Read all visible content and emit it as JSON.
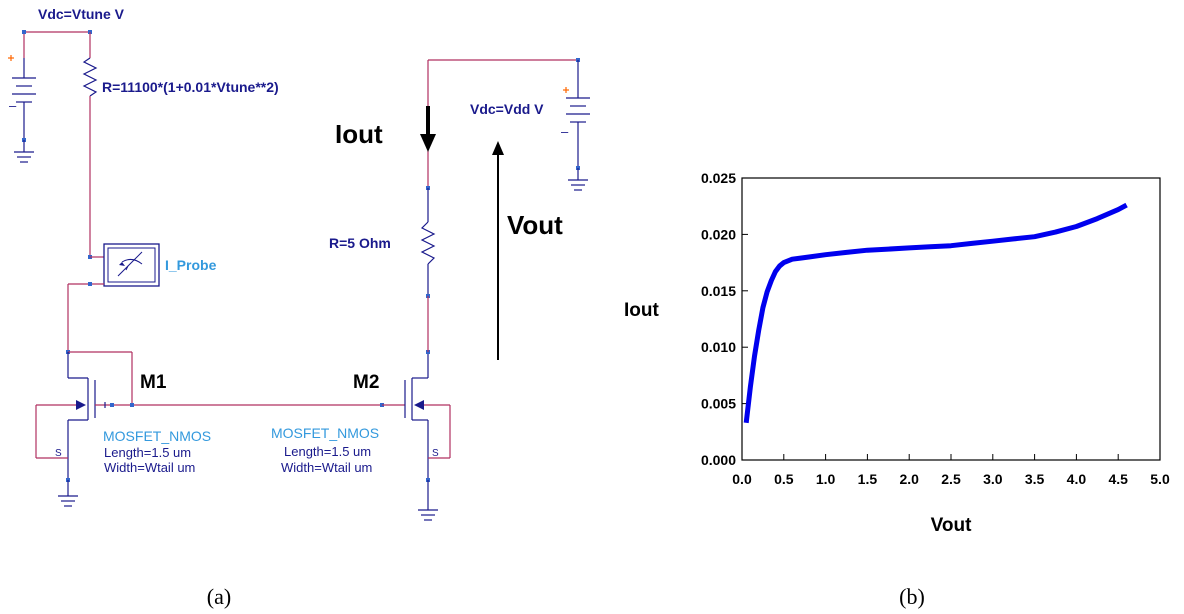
{
  "schematic": {
    "vsource_tune_label": "Vdc=Vtune V",
    "resistor_tune_label": "R=11100*(1+0.01*Vtune**2)",
    "probe_label": "I_Probe",
    "m1_label": "M1",
    "m2_label": "M2",
    "m1_model": "MOSFET_NMOS",
    "m1_length": "Length=1.5 um",
    "m1_width": "Width=Wtail um",
    "m2_model": "MOSFET_NMOS",
    "m2_length": "Length=1.5 um",
    "m2_width": "Width=Wtail um",
    "source_pin_m1": "S",
    "source_pin_m2": "S",
    "resistor_load_label": "R=5 Ohm",
    "vsource_dd_label": "Vdc=Vdd V",
    "iout_label": "Iout",
    "vout_label": "Vout",
    "plus_sign": "+",
    "minus_sign": "–"
  },
  "captions": {
    "a": "(a)",
    "b": "(b)"
  },
  "chart_data": {
    "type": "line",
    "title": "",
    "xlabel": "Vout",
    "ylabel": "Iout",
    "xlim": [
      0,
      5
    ],
    "ylim": [
      0,
      0.025
    ],
    "x_ticks": [
      "0.0",
      "0.5",
      "1.0",
      "1.5",
      "2.0",
      "2.5",
      "3.0",
      "3.5",
      "4.0",
      "4.5",
      "5.0"
    ],
    "y_ticks": [
      "0.000",
      "0.005",
      "0.010",
      "0.015",
      "0.020",
      "0.025"
    ],
    "grid": false,
    "series": [
      {
        "color": "#0000ee",
        "x": [
          0.05,
          0.1,
          0.15,
          0.2,
          0.25,
          0.3,
          0.35,
          0.4,
          0.45,
          0.5,
          0.6,
          0.7,
          0.8,
          1.0,
          1.25,
          1.5,
          1.75,
          2.0,
          2.25,
          2.5,
          2.75,
          3.0,
          3.25,
          3.5,
          3.75,
          4.0,
          4.25,
          4.5,
          4.6
        ],
        "y": [
          0.0033,
          0.0065,
          0.0092,
          0.0115,
          0.0135,
          0.0149,
          0.0159,
          0.0167,
          0.0172,
          0.0175,
          0.0178,
          0.0179,
          0.018,
          0.0182,
          0.0184,
          0.0186,
          0.0187,
          0.0188,
          0.0189,
          0.019,
          0.0192,
          0.0194,
          0.0196,
          0.0198,
          0.0202,
          0.0207,
          0.0214,
          0.0222,
          0.0226
        ]
      }
    ]
  }
}
